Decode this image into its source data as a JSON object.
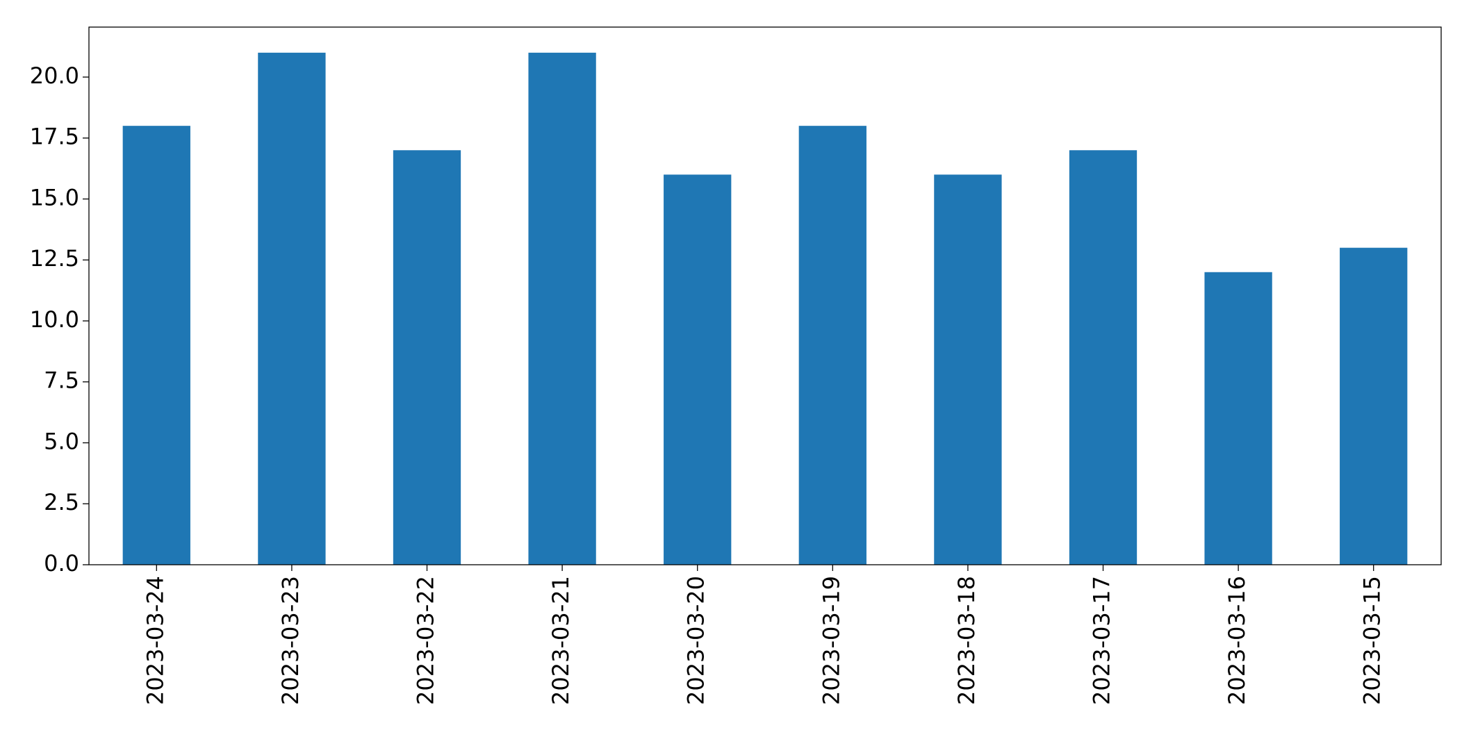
{
  "chart_data": {
    "type": "bar",
    "categories": [
      "2023-03-24",
      "2023-03-23",
      "2023-03-22",
      "2023-03-21",
      "2023-03-20",
      "2023-03-19",
      "2023-03-18",
      "2023-03-17",
      "2023-03-16",
      "2023-03-15"
    ],
    "values": [
      18,
      21,
      17,
      21,
      16,
      18,
      16,
      17,
      12,
      13
    ],
    "color": "#1f77b4",
    "ylim": [
      0,
      22.05
    ],
    "yticks": [
      {
        "value": 0,
        "label": "0.0"
      },
      2.5,
      {
        "value": 5,
        "label": "5.0"
      },
      7.5,
      {
        "value": 10,
        "label": "10.0"
      },
      12.5,
      {
        "value": 15,
        "label": "15.0"
      },
      17.5,
      {
        "value": 20,
        "label": "20.0"
      }
    ],
    "grid": false
  }
}
